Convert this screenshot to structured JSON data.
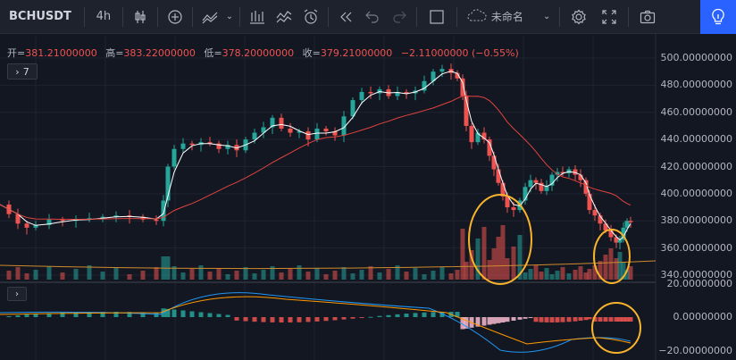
{
  "toolbar": {
    "symbol": "BCHUSDT",
    "interval": "4h",
    "chart_name": "未命名",
    "icons": [
      "candles-icon",
      "add-circle-icon",
      "indicators-icon",
      "bar-chart-icon",
      "compare-icon",
      "alert-clock-icon",
      "replay-icon",
      "undo-icon",
      "redo-icon",
      "layout-square-icon",
      "cloud-icon",
      "settings-gear-icon",
      "fullscreen-icon",
      "camera-icon",
      "lightbulb-icon"
    ]
  },
  "ohlc": {
    "open_label": "开=",
    "open": "381.21000000",
    "high_label": "高=",
    "high": "383.22000000",
    "low_label": "低=",
    "low": "378.20000000",
    "close_label": "收=",
    "close": "379.21000000",
    "change": "−2.11000000 (−0.55%)"
  },
  "indicator_count": "7",
  "price_axis": [
    "500.00000000",
    "480.00000000",
    "460.00000000",
    "440.00000000",
    "420.00000000",
    "400.00000000",
    "380.00000000",
    "360.00000000",
    "340.00000000"
  ],
  "macd_axis": [
    "20.00000000",
    "0.00000000",
    "−20.00000000"
  ],
  "colors": {
    "background": "#131722",
    "up": "#26a69a",
    "down": "#ef5350",
    "ma_fast": "#ffffff",
    "ma_slow": "#e0433f",
    "highlight_circle": "#f7b32b",
    "accent": "#2962ff"
  }
}
